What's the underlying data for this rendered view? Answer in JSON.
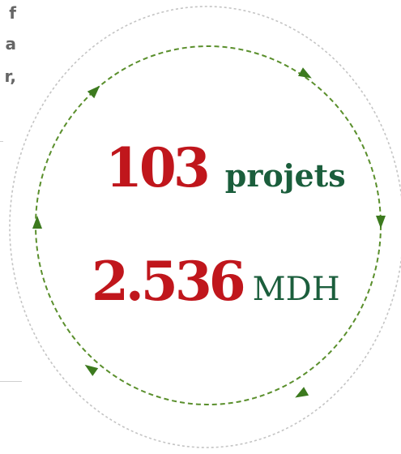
{
  "left_fragments": [
    "f",
    "a",
    "r,"
  ],
  "stats": {
    "projects": {
      "value": "103",
      "unit": "projets"
    },
    "budget": {
      "value": "2.536",
      "unit": "MDH"
    }
  },
  "colors": {
    "value": "#c0161c",
    "unit": "#1b5e3c",
    "outer_ring": "#c4c4c4",
    "inner_ring": "#5a8f2c",
    "arrow": "#3c7a1e"
  },
  "icons": [
    "clockwise-arrow-icon"
  ]
}
